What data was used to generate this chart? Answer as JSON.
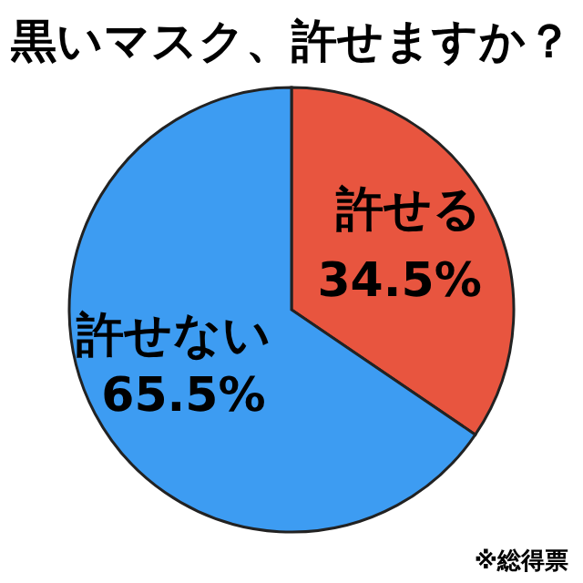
{
  "chart_data": {
    "type": "pie",
    "title": "黒いマスク、許せますか？",
    "categories": [
      "許せる",
      "許せない"
    ],
    "values": [
      34.5,
      65.5
    ],
    "value_labels": [
      "34.5%",
      "65.5%"
    ],
    "colors": [
      "#e8553f",
      "#3d9cf2"
    ],
    "legend": false,
    "annotations": [
      "※総得票"
    ]
  }
}
